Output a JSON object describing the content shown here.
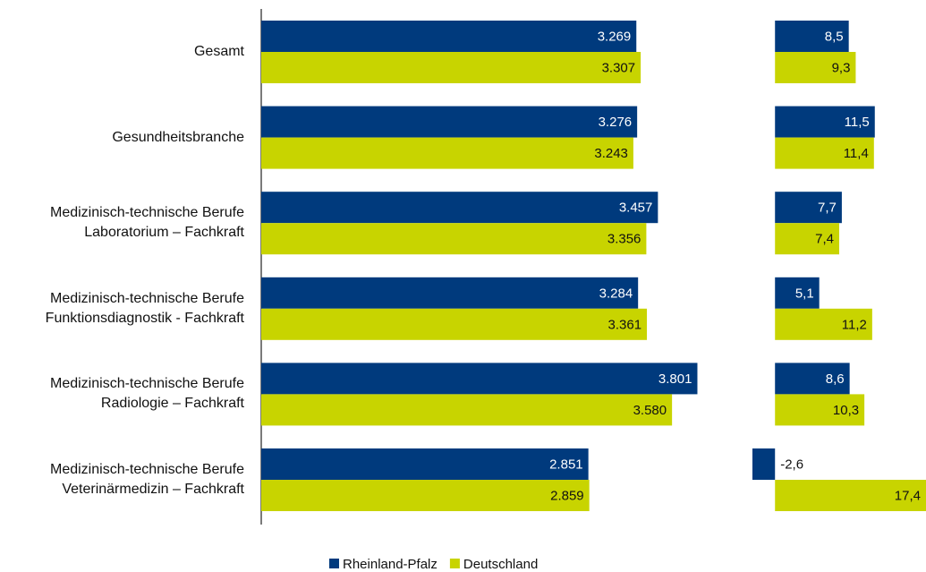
{
  "chart_data": [
    {
      "type": "hbar",
      "categories": [
        "Gesamt",
        "Gesundheitsbranche",
        "Medizinisch-technische Berufe\nLaboratorium – Fachkraft",
        "Medizinisch-technische Berufe\nFunktionsdiagnostik - Fachkraft",
        "Medizinisch-technische Berufe\nRadiologie – Fachkraft",
        "Medizinisch-technische Berufe\nVeterinärmedizin – Fachkraft"
      ],
      "series": [
        {
          "name": "Rheinland-Pfalz",
          "color": "#003a7d",
          "values": [
            3269,
            3276,
            3457,
            3284,
            3801,
            2851
          ],
          "value_labels": [
            "3.269",
            "3.276",
            "3.457",
            "3.284",
            "3.801",
            "2.851"
          ]
        },
        {
          "name": "Deutschland",
          "color": "#c8d400",
          "values": [
            3307,
            3243,
            3356,
            3361,
            3580,
            2859
          ],
          "value_labels": [
            "3.307",
            "3.243",
            "3.356",
            "3.361",
            "3.580",
            "2.859"
          ]
        }
      ],
      "xlim": [
        0,
        4000
      ]
    },
    {
      "type": "hbar",
      "series": [
        {
          "color": "#003a7d",
          "values": [
            8.5,
            11.5,
            7.7,
            5.1,
            8.6,
            -2.6
          ],
          "value_labels": [
            "8,5",
            "11,5",
            "7,7",
            "5,1",
            "8,6",
            "-2,6"
          ]
        },
        {
          "color": "#c8d400",
          "values": [
            9.3,
            11.4,
            7.4,
            11.2,
            10.3,
            17.4
          ],
          "value_labels": [
            "9,3",
            "11,4",
            "7,4",
            "11,2",
            "10,3",
            "17,4"
          ]
        }
      ],
      "xlim": [
        -2.6,
        17.4
      ]
    }
  ]
}
